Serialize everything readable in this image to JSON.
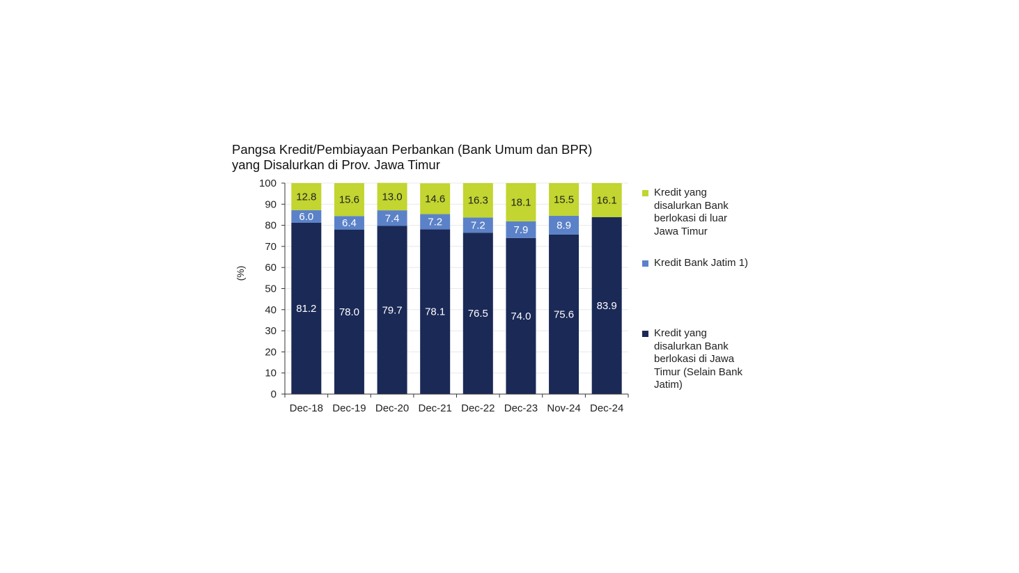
{
  "chart_data": {
    "type": "bar",
    "stacked": true,
    "title_lines": [
      "Pangsa Kredit/Pembiayaan Perbankan (Bank Umum dan BPR)",
      "yang Disalurkan di Prov. Jawa Timur"
    ],
    "xlabel": "",
    "ylabel": "(%)",
    "ylim": [
      0,
      100
    ],
    "yticks": [
      0,
      10,
      20,
      30,
      40,
      50,
      60,
      70,
      80,
      90,
      100
    ],
    "grid": true,
    "legend_position": "right",
    "categories": [
      "Dec-18",
      "Dec-19",
      "Dec-20",
      "Dec-21",
      "Dec-22",
      "Dec-23",
      "Nov-24",
      "Dec-24"
    ],
    "series": [
      {
        "name": "Kredit yang disalurkan Bank berlokasi di Jawa Timur (Selain Bank Jatim)",
        "legend_text": "Kredit yang\ndisalurkan Bank\nberlokasi di Jawa\nTimur (Selain Bank\nJatim)",
        "color": "#1b2956",
        "label_color": "#ffffff",
        "values": [
          81.2,
          78.0,
          79.7,
          78.1,
          76.5,
          74.0,
          75.6,
          83.9
        ],
        "labels": [
          "81.2",
          "78.0",
          "79.7",
          "78.1",
          "76.5",
          "74.0",
          "75.6",
          "83.9"
        ]
      },
      {
        "name": "Kredit Bank Jatim 1)",
        "legend_text": "Kredit Bank Jatim 1)",
        "color": "#5b82c8",
        "label_color": "#ffffff",
        "values": [
          6.0,
          6.4,
          7.4,
          7.2,
          7.2,
          7.9,
          8.9,
          0
        ],
        "labels": [
          "6.0",
          "6.4",
          "7.4",
          "7.2",
          "7.2",
          "7.9",
          "8.9",
          ""
        ]
      },
      {
        "name": "Kredit yang disalurkan Bank berlokasi di luar Jawa Timur",
        "legend_text": "Kredit yang\ndisalurkan Bank\nberlokasi di luar\nJawa Timur",
        "color": "#c2d530",
        "label_color": "#222222",
        "values": [
          12.8,
          15.6,
          13.0,
          14.6,
          16.3,
          18.1,
          15.5,
          16.1
        ],
        "labels": [
          "12.8",
          "15.6",
          "13.0",
          "14.6",
          "16.3",
          "18.1",
          "15.5",
          "16.1"
        ]
      }
    ]
  }
}
